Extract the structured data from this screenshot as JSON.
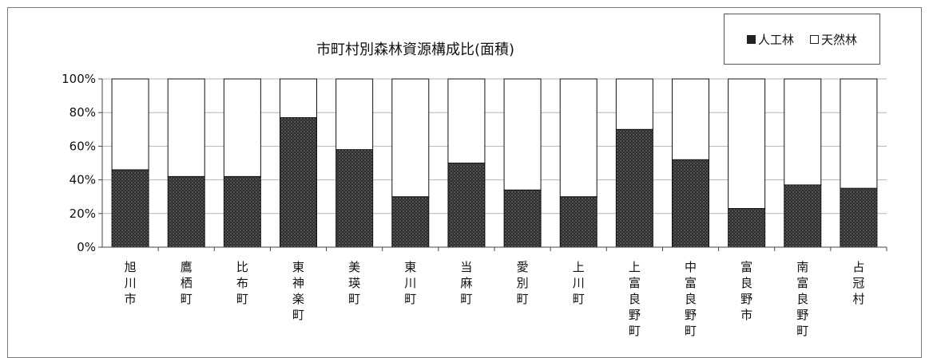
{
  "chart_data": {
    "type": "bar",
    "stacked": true,
    "percent": true,
    "title": "市町村別森林資源構成比(面積)",
    "categories": [
      "旭川市",
      "鷹栖町",
      "比布町",
      "東神楽町",
      "美瑛町",
      "東川町",
      "当麻町",
      "愛別町",
      "上川町",
      "上富良野町",
      "中富良野町",
      "富良野市",
      "南富良野町",
      "占冠村"
    ],
    "series": [
      {
        "name": "人工林",
        "color": "#333333",
        "values": [
          46,
          42,
          42,
          77,
          58,
          30,
          50,
          34,
          30,
          70,
          52,
          23,
          37,
          35
        ]
      },
      {
        "name": "天然林",
        "color": "#ffffff",
        "values": [
          54,
          58,
          58,
          23,
          42,
          70,
          50,
          66,
          70,
          30,
          48,
          77,
          63,
          65
        ]
      }
    ],
    "yticks": [
      "0%",
      "20%",
      "40%",
      "60%",
      "80%",
      "100%"
    ],
    "ylim": [
      0,
      100
    ],
    "grid": true,
    "legend_position": "top-right",
    "legend": [
      {
        "marker": "■",
        "label": "人工林"
      },
      {
        "marker": "□",
        "label": "天然林"
      }
    ]
  }
}
